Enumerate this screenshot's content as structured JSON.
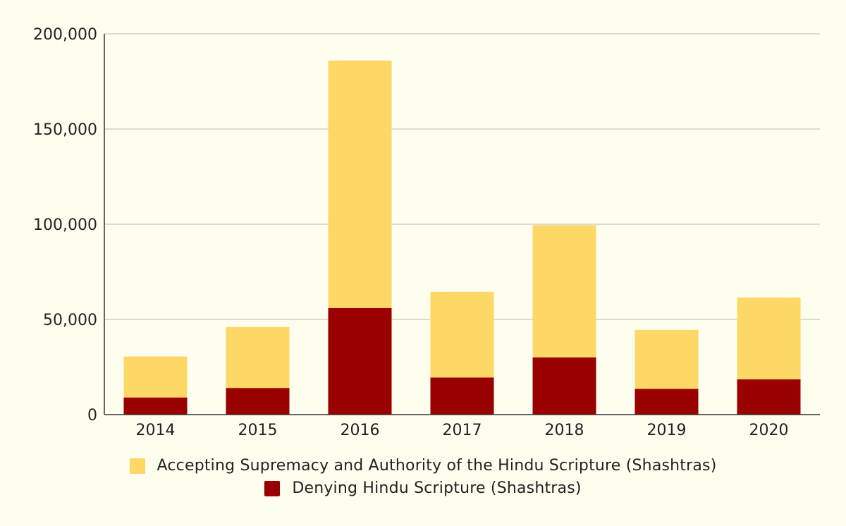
{
  "chart_data": {
    "type": "bar",
    "stacked": true,
    "categories": [
      "2014",
      "2015",
      "2016",
      "2017",
      "2018",
      "2019",
      "2020"
    ],
    "series": [
      {
        "name": "Denying Hindu Scripture (Shashtras)",
        "color": "#990000",
        "values": [
          9000,
          14000,
          56000,
          19500,
          30000,
          13500,
          18500
        ]
      },
      {
        "name": "Accepting Supremacy and Authority of the Hindu Scripture (Shashtras)",
        "color": "#fed866",
        "values": [
          21500,
          32000,
          130000,
          45000,
          69500,
          31000,
          43000
        ]
      }
    ],
    "ylim": [
      0,
      200000
    ],
    "yticks": [
      "0",
      "50,000",
      "100,000",
      "150,000",
      "200,000"
    ],
    "xlabel": "",
    "ylabel": "",
    "title": "",
    "grid": true,
    "legend_position": "bottom"
  },
  "legend": {
    "accepting_label": "Accepting Supremacy and Authority of the Hindu Scripture (Shashtras)",
    "accepting_color": "#fed866",
    "denying_label": "Denying Hindu Scripture (Shashtras)",
    "denying_color": "#990000"
  }
}
